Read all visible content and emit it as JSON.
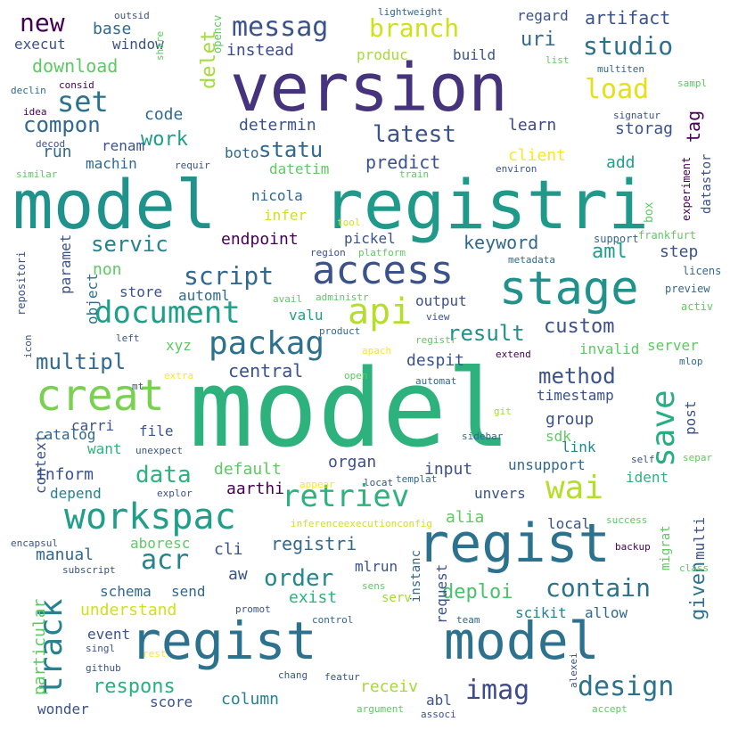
{
  "words": [
    {
      "text": "model",
      "color": "#2db27d"
    },
    {
      "text": "registri",
      "color": "#1f9a8a"
    },
    {
      "text": "model",
      "color": "#20928c"
    },
    {
      "text": "version",
      "color": "#46337e"
    },
    {
      "text": "regist",
      "color": "#2c728e"
    },
    {
      "text": "model",
      "color": "#2c728e"
    },
    {
      "text": "regist",
      "color": "#2c728e"
    },
    {
      "text": "stage",
      "color": "#21918c"
    },
    {
      "text": "creat",
      "color": "#7ad151"
    },
    {
      "text": "workspac",
      "color": "#1f9e89"
    },
    {
      "text": "access",
      "color": "#3b528b"
    },
    {
      "text": "api",
      "color": "#b5de2b"
    },
    {
      "text": "save",
      "color": "#28ae80"
    },
    {
      "text": "packag",
      "color": "#2c728e"
    },
    {
      "text": "document",
      "color": "#1f9e89"
    },
    {
      "text": "wai",
      "color": "#b5de2b"
    },
    {
      "text": "retriev",
      "color": "#2db27d"
    },
    {
      "text": "imag",
      "color": "#3e4a89"
    },
    {
      "text": "design",
      "color": "#2c728e"
    },
    {
      "text": "contain",
      "color": "#2c728e"
    },
    {
      "text": "track",
      "color": "#26828e"
    },
    {
      "text": "set",
      "color": "#2c728e"
    },
    {
      "text": "load",
      "color": "#e4e11b"
    },
    {
      "text": "branch",
      "color": "#d0e11c"
    },
    {
      "text": "messag",
      "color": "#3b528b"
    },
    {
      "text": "studio",
      "color": "#2c728e"
    },
    {
      "text": "acr",
      "color": "#26828e"
    },
    {
      "text": "latest",
      "color": "#3b528b"
    },
    {
      "text": "script",
      "color": "#31688e"
    },
    {
      "text": "new",
      "color": "#440154"
    },
    {
      "text": "compon",
      "color": "#31688e"
    },
    {
      "text": "method",
      "color": "#3b528b"
    },
    {
      "text": "data",
      "color": "#2db27d"
    },
    {
      "text": "order",
      "color": "#23888e"
    },
    {
      "text": "multipl",
      "color": "#31688e"
    },
    {
      "text": "servic",
      "color": "#26828e"
    },
    {
      "text": "result",
      "color": "#21918c"
    },
    {
      "text": "respons",
      "color": "#2ab07f"
    },
    {
      "text": "custom",
      "color": "#3b528b"
    },
    {
      "text": "statu",
      "color": "#31688e"
    },
    {
      "text": "deploi",
      "color": "#4ac16d"
    },
    {
      "text": "given",
      "color": "#2c728e"
    },
    {
      "text": "delet",
      "color": "#a5db36"
    },
    {
      "text": "uri",
      "color": "#31688e"
    },
    {
      "text": "artifact",
      "color": "#3b528b"
    },
    {
      "text": "keyword",
      "color": "#31688e"
    },
    {
      "text": "endpoint",
      "color": "#440154"
    },
    {
      "text": "understand",
      "color": "#d0e11c"
    },
    {
      "text": "registri",
      "color": "#31688e"
    },
    {
      "text": "central",
      "color": "#3b528b"
    },
    {
      "text": "aml",
      "color": "#1f9e89"
    },
    {
      "text": "work",
      "color": "#1f9e89"
    },
    {
      "text": "predict",
      "color": "#3b528b"
    },
    {
      "text": "storag",
      "color": "#3b528b"
    },
    {
      "text": "learn",
      "color": "#3e4a89"
    },
    {
      "text": "determin",
      "color": "#3b528b"
    },
    {
      "text": "client",
      "color": "#fde725"
    },
    {
      "text": "code",
      "color": "#31688e"
    },
    {
      "text": "tag",
      "color": "#440154"
    },
    {
      "text": "download",
      "color": "#5ec962"
    },
    {
      "text": "instead",
      "color": "#3e4a89"
    },
    {
      "text": "base",
      "color": "#31688e"
    },
    {
      "text": "default",
      "color": "#5ec962"
    },
    {
      "text": "inform",
      "color": "#3b528b"
    },
    {
      "text": "input",
      "color": "#3b528b"
    },
    {
      "text": "organ",
      "color": "#3b528b"
    },
    {
      "text": "alia",
      "color": "#5ec962"
    },
    {
      "text": "exist",
      "color": "#2db27d"
    },
    {
      "text": "receiv",
      "color": "#a5db36"
    },
    {
      "text": "column",
      "color": "#26828e"
    },
    {
      "text": "despit",
      "color": "#3b528b"
    },
    {
      "text": "group",
      "color": "#3b528b"
    },
    {
      "text": "link",
      "color": "#23888e"
    },
    {
      "text": "post",
      "color": "#3b528b"
    },
    {
      "text": "aw",
      "color": "#3b528b"
    },
    {
      "text": "cli",
      "color": "#3b528b"
    },
    {
      "text": "aarthi",
      "color": "#440154"
    },
    {
      "text": "want",
      "color": "#2db27d"
    },
    {
      "text": "manual",
      "color": "#31688e"
    },
    {
      "text": "particular",
      "color": "#5ec962"
    },
    {
      "text": "context",
      "color": "#3b528b"
    },
    {
      "text": "object",
      "color": "#2c728e"
    },
    {
      "text": "paramet",
      "color": "#3b528b"
    },
    {
      "text": "non",
      "color": "#5ec962"
    },
    {
      "text": "step",
      "color": "#3b528b"
    },
    {
      "text": "request",
      "color": "#3b528b"
    },
    {
      "text": "multi",
      "color": "#3b528b"
    },
    {
      "text": "run",
      "color": "#31688e"
    },
    {
      "text": "add",
      "color": "#1f9e89"
    },
    {
      "text": "execut",
      "color": "#3b528b"
    },
    {
      "text": "window",
      "color": "#3b528b"
    },
    {
      "text": "build",
      "color": "#3b528b"
    },
    {
      "text": "regard",
      "color": "#3b528b"
    },
    {
      "text": "produc",
      "color": "#a5db36"
    },
    {
      "text": "machin",
      "color": "#31688e"
    },
    {
      "text": "renam",
      "color": "#3b528b"
    },
    {
      "text": "boto",
      "color": "#31688e"
    },
    {
      "text": "datetim",
      "color": "#5ec962"
    },
    {
      "text": "nicola",
      "color": "#31688e"
    },
    {
      "text": "infer",
      "color": "#d0e11c"
    },
    {
      "text": "pickel",
      "color": "#3b528b"
    },
    {
      "text": "store",
      "color": "#3b528b"
    },
    {
      "text": "automl",
      "color": "#31688e"
    },
    {
      "text": "valu",
      "color": "#1f9e89"
    },
    {
      "text": "output",
      "color": "#3b528b"
    },
    {
      "text": "sdk",
      "color": "#5ec962"
    },
    {
      "text": "invalid",
      "color": "#5ec962"
    },
    {
      "text": "server",
      "color": "#5ec962"
    },
    {
      "text": "timestamp",
      "color": "#3b528b"
    },
    {
      "text": "unsupport",
      "color": "#31688e"
    },
    {
      "text": "ident",
      "color": "#2db27d"
    },
    {
      "text": "file",
      "color": "#3b528b"
    },
    {
      "text": "catalog",
      "color": "#31688e"
    },
    {
      "text": "carri",
      "color": "#3b528b"
    },
    {
      "text": "xyz",
      "color": "#5ec962"
    },
    {
      "text": "schema",
      "color": "#31688e"
    },
    {
      "text": "send",
      "color": "#31688e"
    },
    {
      "text": "depend",
      "color": "#26828e"
    },
    {
      "text": "unvers",
      "color": "#3b528b"
    },
    {
      "text": "local",
      "color": "#3b528b"
    },
    {
      "text": "migrat",
      "color": "#5ec962"
    },
    {
      "text": "instanc",
      "color": "#31688e"
    },
    {
      "text": "mlrun",
      "color": "#3b528b"
    },
    {
      "text": "serv",
      "color": "#a5db36"
    },
    {
      "text": "scikit",
      "color": "#26828e"
    },
    {
      "text": "allow",
      "color": "#31688e"
    },
    {
      "text": "event",
      "color": "#3b528b"
    },
    {
      "text": "score",
      "color": "#3b528b"
    },
    {
      "text": "abl",
      "color": "#3b528b"
    },
    {
      "text": "wonder",
      "color": "#3b528b"
    },
    {
      "text": "aboresc",
      "color": "#5ec962"
    },
    {
      "text": "datastor",
      "color": "#3b528b"
    },
    {
      "text": "box",
      "color": "#5ec962"
    },
    {
      "text": "support",
      "color": "#31688e"
    },
    {
      "text": "frankfurt",
      "color": "#5ec962"
    },
    {
      "text": "repositori",
      "color": "#3b528b"
    },
    {
      "text": "experiment",
      "color": "#440154"
    },
    {
      "text": "metadata",
      "color": "#31688e"
    },
    {
      "text": "platform",
      "color": "#5ec962"
    },
    {
      "text": "region",
      "color": "#3b528b"
    },
    {
      "text": "tool",
      "color": "#d0e11c"
    },
    {
      "text": "licens",
      "color": "#31688e"
    },
    {
      "text": "preview",
      "color": "#31688e"
    },
    {
      "text": "activ",
      "color": "#5ec962"
    },
    {
      "text": "mlop",
      "color": "#31688e"
    },
    {
      "text": "extend",
      "color": "#440154"
    },
    {
      "text": "apach",
      "color": "#fde725"
    },
    {
      "text": "registr",
      "color": "#5ec962"
    },
    {
      "text": "product",
      "color": "#31688e"
    },
    {
      "text": "view",
      "color": "#3b528b"
    },
    {
      "text": "administr",
      "color": "#5ec962"
    },
    {
      "text": "avail",
      "color": "#5ec962"
    },
    {
      "text": "left",
      "color": "#3b528b"
    },
    {
      "text": "extra",
      "color": "#fde725"
    },
    {
      "text": "mt",
      "color": "#3b528b"
    },
    {
      "text": "open",
      "color": "#5ec962"
    },
    {
      "text": "automat",
      "color": "#31688e"
    },
    {
      "text": "git",
      "color": "#a5db36"
    },
    {
      "text": "sidebar",
      "color": "#31688e"
    },
    {
      "text": "self",
      "color": "#3b528b"
    },
    {
      "text": "separ",
      "color": "#5ec962"
    },
    {
      "text": "unexpect",
      "color": "#3b528b"
    },
    {
      "text": "explor",
      "color": "#3b528b"
    },
    {
      "text": "appear",
      "color": "#fde725"
    },
    {
      "text": "locat",
      "color": "#3b528b"
    },
    {
      "text": "templat",
      "color": "#31688e"
    },
    {
      "text": "inferenceexecutionconfig",
      "color": "#d0e11c"
    },
    {
      "text": "success",
      "color": "#5ec962"
    },
    {
      "text": "encapsul",
      "color": "#3b528b"
    },
    {
      "text": "subscript",
      "color": "#3b528b"
    },
    {
      "text": "backup",
      "color": "#440154"
    },
    {
      "text": "class",
      "color": "#5ec962"
    },
    {
      "text": "sens",
      "color": "#5ec962"
    },
    {
      "text": "promot",
      "color": "#3b528b"
    },
    {
      "text": "control",
      "color": "#31688e"
    },
    {
      "text": "team",
      "color": "#31688e"
    },
    {
      "text": "singl",
      "color": "#3b528b"
    },
    {
      "text": "rest",
      "color": "#fde725"
    },
    {
      "text": "github",
      "color": "#3b528b"
    },
    {
      "text": "chang",
      "color": "#3b528b"
    },
    {
      "text": "featur",
      "color": "#3b528b"
    },
    {
      "text": "alexei",
      "color": "#3b528b"
    },
    {
      "text": "argument",
      "color": "#5ec962"
    },
    {
      "text": "associ",
      "color": "#3b528b"
    },
    {
      "text": "accept",
      "color": "#5ec962"
    },
    {
      "text": "outsid",
      "color": "#3b528b"
    },
    {
      "text": "lightweight",
      "color": "#31688e"
    },
    {
      "text": "opencv",
      "color": "#5ec962"
    },
    {
      "text": "share",
      "color": "#5ec962"
    },
    {
      "text": "consid",
      "color": "#440154"
    },
    {
      "text": "declin",
      "color": "#31688e"
    },
    {
      "text": "idea",
      "color": "#440154"
    },
    {
      "text": "list",
      "color": "#5ec962"
    },
    {
      "text": "multiten",
      "color": "#31688e"
    },
    {
      "text": "sampl",
      "color": "#5ec962"
    },
    {
      "text": "signatur",
      "color": "#3b528b"
    },
    {
      "text": "decod",
      "color": "#3b528b"
    },
    {
      "text": "similar",
      "color": "#5ec962"
    },
    {
      "text": "requir",
      "color": "#3b528b"
    },
    {
      "text": "train",
      "color": "#5ec962"
    },
    {
      "text": "environ",
      "color": "#3b528b"
    },
    {
      "text": "icon",
      "color": "#3b528b"
    }
  ]
}
